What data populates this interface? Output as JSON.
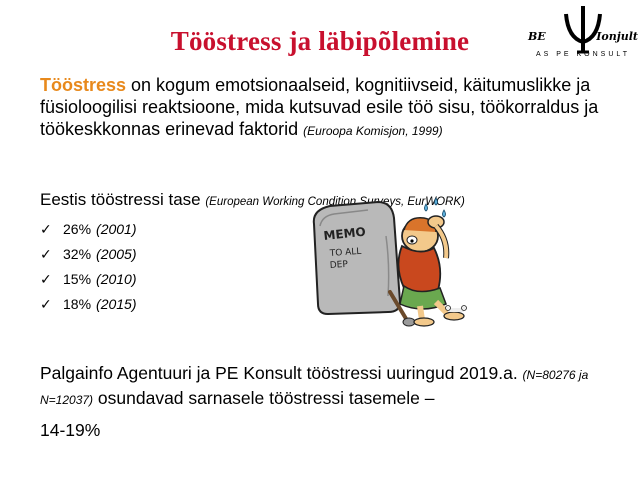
{
  "slide": {
    "title": "Tööstress ja läbipõlemine",
    "logo": {
      "word_left": "BE",
      "word_right": "Ionjult",
      "subtitle": "AS PE KONSULT",
      "icon": "psi-icon"
    },
    "definition": {
      "term": "Tööstress",
      "text": " on kogum emotsionaalseid, kognitiivseid, käitumuslikke ja füsioloogilisi reaktsioone, mida kutsuvad esile töö sisu, töökorraldus ja töökeskkonnas erinevad faktorid ",
      "citation": "(Euroopa Komisjon, 1999)"
    },
    "levels": {
      "title": "Eestis tööstressi tase ",
      "citation": "(European Working Condition Surveys, EurWORK)",
      "items": [
        {
          "check": "✓",
          "percent": "26%",
          "year": "(2001)"
        },
        {
          "check": "✓",
          "percent": "32%",
          "year": "(2005)"
        },
        {
          "check": "✓",
          "percent": "15%",
          "year": "(2010)"
        },
        {
          "check": "✓",
          "percent": "18%",
          "year": "(2015)"
        }
      ]
    },
    "cartoon": {
      "memo_line1": "MEMO",
      "memo_line2": "TO ALL",
      "memo_line3": "DEP"
    },
    "survey": {
      "text1": "Palgainfo Agentuuri ja PE Konsult tööstressi uuringud 2019.a. ",
      "citation": "(N=80276 ja N=12037)",
      "text2": " osundavad sarnasele tööstressi tasemele –",
      "range": "14-19%"
    },
    "colors": {
      "title": "#c8102e",
      "term": "#e8891c"
    }
  }
}
